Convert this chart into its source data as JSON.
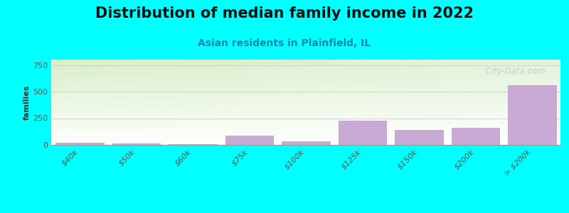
{
  "title": "Distribution of median family income in 2022",
  "subtitle": "Asian residents in Plainfield, IL",
  "ylabel": "families",
  "background_color": "#00FFFF",
  "bar_color": "#c8aad4",
  "bar_edge_color": "#b898c8",
  "categories": [
    "$40k",
    "$50k",
    "$60k",
    "$75k",
    "$100k",
    "$125k",
    "$150k",
    "$200k",
    "> $200k"
  ],
  "values": [
    20,
    12,
    8,
    90,
    35,
    230,
    140,
    160,
    560
  ],
  "ylim": [
    0,
    800
  ],
  "yticks": [
    0,
    250,
    500,
    750
  ],
  "watermark": "  City-Data.com",
  "title_fontsize": 15,
  "subtitle_fontsize": 10,
  "ylabel_fontsize": 8,
  "gradient_top_color": "#d8eec8",
  "gradient_bottom_color": "#f8fff4",
  "gradient_right_color": "#ffffff"
}
